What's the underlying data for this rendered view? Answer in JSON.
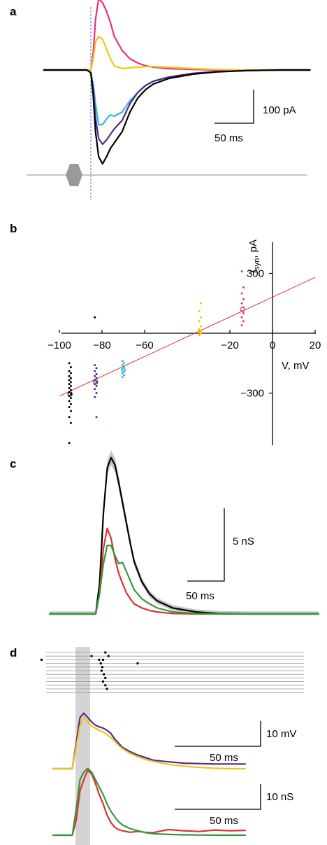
{
  "figure": {
    "panel_labels": [
      "a",
      "b",
      "c",
      "d"
    ]
  },
  "chart_data": [
    {
      "panel": "a",
      "type": "line",
      "title": "",
      "xlabel": "",
      "ylabel": "",
      "x_unit": "ms",
      "y_unit": "pA",
      "scale_bars": {
        "x_label": "50 ms",
        "x_value": 50,
        "y_label": "100 pA",
        "y_value": 100
      },
      "stimulus_marker": "grey hexagon on baseline",
      "series": [
        {
          "color": "#e8307a",
          "x": [
            -60,
            -10,
            -5,
            0,
            3,
            6,
            10,
            15,
            20,
            25,
            30,
            40,
            50,
            60,
            70,
            80,
            100,
            130,
            160,
            200,
            240,
            280
          ],
          "y": [
            0,
            0,
            0,
            0,
            60,
            180,
            255,
            240,
            210,
            170,
            120,
            70,
            40,
            25,
            15,
            10,
            5,
            2,
            0,
            0,
            0,
            0
          ]
        },
        {
          "color": "#f0c419",
          "x": [
            -60,
            -10,
            -5,
            0,
            3,
            6,
            10,
            15,
            20,
            25,
            30,
            40,
            50,
            60,
            70,
            80,
            100,
            130,
            160,
            200,
            240,
            280
          ],
          "y": [
            0,
            0,
            0,
            0,
            40,
            100,
            120,
            110,
            75,
            40,
            15,
            5,
            8,
            10,
            12,
            12,
            10,
            5,
            2,
            0,
            0,
            0
          ]
        },
        {
          "color": "#39b2e0",
          "x": [
            -60,
            -10,
            -5,
            0,
            3,
            6,
            10,
            15,
            20,
            25,
            30,
            40,
            50,
            60,
            70,
            80,
            100,
            130,
            160,
            200,
            240,
            280
          ],
          "y": [
            0,
            0,
            0,
            -10,
            -50,
            -120,
            -195,
            -195,
            -175,
            -160,
            -165,
            -150,
            -110,
            -80,
            -55,
            -40,
            -25,
            -12,
            -6,
            -2,
            0,
            0
          ]
        },
        {
          "color": "#4e2d8c",
          "x": [
            -60,
            -10,
            -5,
            0,
            3,
            6,
            10,
            15,
            20,
            25,
            30,
            40,
            50,
            60,
            70,
            80,
            100,
            130,
            160,
            200,
            240,
            280
          ],
          "y": [
            0,
            0,
            0,
            -10,
            -70,
            -170,
            -245,
            -265,
            -250,
            -230,
            -210,
            -180,
            -120,
            -80,
            -55,
            -40,
            -25,
            -12,
            -6,
            -2,
            0,
            0
          ]
        },
        {
          "color": "#000000",
          "x": [
            -60,
            -10,
            -5,
            0,
            3,
            6,
            10,
            15,
            20,
            25,
            30,
            40,
            50,
            60,
            70,
            80,
            100,
            130,
            160,
            200,
            240,
            280
          ],
          "y": [
            0,
            0,
            0,
            -10,
            -90,
            -220,
            -310,
            -335,
            -310,
            -280,
            -260,
            -220,
            -150,
            -100,
            -70,
            -50,
            -30,
            -15,
            -7,
            -2,
            0,
            0
          ]
        }
      ]
    },
    {
      "panel": "b",
      "type": "scatter",
      "title": "",
      "xlabel": "V, mV",
      "ylabel": "I_syn, pA",
      "ylabel_main": "I",
      "ylabel_sub": "syn",
      "ylabel_unit": ", pA",
      "x_ticks": [
        "−100",
        "−80",
        "−60",
        "−20",
        "0",
        "20"
      ],
      "x_tick_values": [
        -100,
        -80,
        -60,
        -20,
        0,
        20
      ],
      "y_ticks": [
        "300",
        "−300"
      ],
      "y_tick_values": [
        300,
        -300
      ],
      "xlim": [
        -100,
        20
      ],
      "ylim": [
        -570,
        450
      ],
      "fit_line": {
        "color": "#e03030",
        "x1": -100,
        "y1": -315,
        "x2": 20,
        "y2": 280
      },
      "series": [
        {
          "color": "#000000",
          "x": -95,
          "points": [
            -150,
            -170,
            -190,
            -200,
            -215,
            -225,
            -235,
            -245,
            -255,
            -265,
            -275,
            -285,
            -295,
            -305,
            -315,
            -325,
            -340,
            -355,
            -370,
            -390,
            -420,
            -450,
            -550
          ],
          "mean": -305
        },
        {
          "color": "#4e2d8c",
          "x": -83,
          "points": [
            -160,
            -175,
            -190,
            -205,
            -215,
            -225,
            -235,
            -245,
            -255,
            -265,
            -280,
            -300,
            -320,
            -420
          ],
          "mean": -245
        },
        {
          "color": "#39b2e0",
          "x": -70,
          "points": [
            -140,
            -150,
            -160,
            -170,
            -180,
            -190,
            -200,
            -210,
            -220
          ],
          "mean": -185
        },
        {
          "color": "#f0c419",
          "x": -34,
          "points": [
            -10,
            0,
            5,
            10,
            20,
            35,
            60,
            80,
            110,
            150
          ],
          "mean": 5
        },
        {
          "color": "#e8307a",
          "x": -14,
          "points": [
            40,
            60,
            80,
            100,
            110,
            130,
            150,
            170,
            200,
            230,
            310
          ],
          "mean": 120
        },
        {
          "color": "#000000",
          "x": -83,
          "points": [
            80
          ],
          "mean": null
        }
      ]
    },
    {
      "panel": "c",
      "type": "line",
      "title": "",
      "xlabel": "",
      "ylabel": "",
      "x_unit": "ms",
      "y_unit": "nS",
      "scale_bars": {
        "x_label": "50 ms",
        "x_value": 50,
        "y_label": "5 nS",
        "y_value": 5
      },
      "series": [
        {
          "color": "#000000",
          "error_band": true,
          "x": [
            -60,
            -10,
            -5,
            0,
            5,
            10,
            15,
            20,
            25,
            30,
            35,
            40,
            45,
            50,
            60,
            70,
            80,
            100,
            130,
            160,
            200,
            240,
            290
          ],
          "y": [
            0,
            0,
            0,
            0,
            3,
            10,
            14.5,
            15.5,
            14.8,
            13,
            11,
            9,
            7,
            5.2,
            3.2,
            2,
            1.3,
            0.6,
            0.2,
            0.05,
            0,
            0,
            0
          ]
        },
        {
          "color": "#e03030",
          "x": [
            -60,
            -10,
            -5,
            0,
            5,
            10,
            15,
            20,
            25,
            30,
            35,
            40,
            45,
            50,
            60,
            70,
            80,
            100,
            130,
            160,
            200,
            240,
            290
          ],
          "y": [
            0,
            0,
            0,
            0,
            2,
            6.5,
            8.5,
            7.5,
            5.5,
            4,
            3,
            2.1,
            1.5,
            1,
            0.6,
            0.35,
            0.2,
            0.05,
            0,
            0,
            0,
            0,
            0
          ]
        },
        {
          "color": "#2f9c3c",
          "x": [
            -60,
            -10,
            -5,
            0,
            5,
            10,
            15,
            20,
            25,
            30,
            35,
            40,
            45,
            50,
            60,
            70,
            80,
            100,
            130,
            160,
            200,
            240,
            290
          ],
          "y": [
            0,
            0,
            0,
            0,
            2,
            5,
            6.8,
            6.8,
            5.8,
            5,
            5.1,
            4.2,
            3.3,
            2.4,
            1.5,
            1,
            0.6,
            0.2,
            0.05,
            0,
            0,
            0,
            0
          ]
        }
      ]
    },
    {
      "panel": "d",
      "type": "line",
      "title": "",
      "xlabel": "",
      "ylabel": "",
      "raster": {
        "trials": 12,
        "spikes": [
          {
            "trial": 1,
            "t": 20
          },
          {
            "trial": 0,
            "t": 38
          },
          {
            "trial": 1,
            "t": 42
          },
          {
            "trial": 2,
            "t": 30
          },
          {
            "trial": 2,
            "t": 35
          },
          {
            "trial": 3,
            "t": 32
          },
          {
            "trial": 3,
            "t": 80
          },
          {
            "trial": 4,
            "t": 34
          },
          {
            "trial": 5,
            "t": 33
          },
          {
            "trial": 6,
            "t": 36
          },
          {
            "trial": 7,
            "t": 38
          },
          {
            "trial": 8,
            "t": 35
          },
          {
            "trial": 9,
            "t": 38
          },
          {
            "trial": 10,
            "t": 40
          },
          {
            "trial": 2,
            "t": -45
          }
        ]
      },
      "shaded_window_ms": [
        0,
        15
      ],
      "voltage_scale_bars": {
        "x_label": "50 ms",
        "x_value": 50,
        "y_label": "10 mV",
        "y_value": 10
      },
      "voltage_series": [
        {
          "color": "#4e2d8c",
          "x": [
            -30,
            -5,
            0,
            5,
            10,
            15,
            20,
            25,
            30,
            35,
            40,
            45,
            50,
            55,
            60,
            70,
            80,
            90,
            100,
            120,
            140,
            160,
            180,
            200,
            220
          ],
          "y": [
            0,
            0,
            6,
            12,
            13,
            12,
            11,
            10.2,
            9.8,
            9.5,
            9,
            8.3,
            7,
            6,
            5,
            4,
            3.2,
            2.6,
            2,
            1.6,
            1.3,
            1.2,
            1.1,
            1.1,
            1.1
          ]
        },
        {
          "color": "#f0c419",
          "x": [
            -30,
            -5,
            0,
            5,
            10,
            15,
            20,
            25,
            30,
            35,
            40,
            45,
            50,
            55,
            60,
            70,
            80,
            90,
            100,
            120,
            140,
            160,
            180,
            200,
            220
          ],
          "y": [
            0,
            0,
            5,
            10,
            12,
            11,
            10,
            9.5,
            9,
            8.6,
            8,
            7.3,
            6.5,
            5.5,
            4.7,
            3.6,
            2.8,
            2.2,
            1.7,
            1,
            0.6,
            0.3,
            0.1,
            0,
            0
          ]
        }
      ],
      "conductance_scale_bars": {
        "x_label": "50 ms",
        "x_value": 50,
        "y_label": "10 nS",
        "y_value": 10
      },
      "conductance_series": [
        {
          "color": "#e03030",
          "x": [
            -30,
            -5,
            0,
            5,
            10,
            15,
            20,
            25,
            30,
            35,
            40,
            45,
            50,
            55,
            60,
            70,
            80,
            90,
            100,
            120,
            140,
            160,
            180,
            200,
            220
          ],
          "y": [
            0,
            0,
            4,
            12,
            15,
            17.5,
            16.5,
            14,
            11,
            8.5,
            5.5,
            3.5,
            2.2,
            1.5,
            1.2,
            0.8,
            1,
            0.8,
            0.7,
            1.5,
            1.2,
            1,
            1.4,
            1.2,
            1.3
          ]
        },
        {
          "color": "#2f9c3c",
          "x": [
            -30,
            -5,
            0,
            5,
            10,
            15,
            20,
            25,
            30,
            35,
            40,
            45,
            50,
            55,
            60,
            70,
            80,
            90,
            100,
            120,
            140,
            160,
            180,
            200,
            220
          ],
          "y": [
            0,
            0,
            7,
            15,
            17,
            18,
            17,
            15,
            13,
            11,
            8.5,
            6.5,
            5,
            3.7,
            2.8,
            1.8,
            1.2,
            0.7,
            0.4,
            0.2,
            0.1,
            0.05,
            0,
            0,
            0
          ]
        }
      ]
    }
  ]
}
